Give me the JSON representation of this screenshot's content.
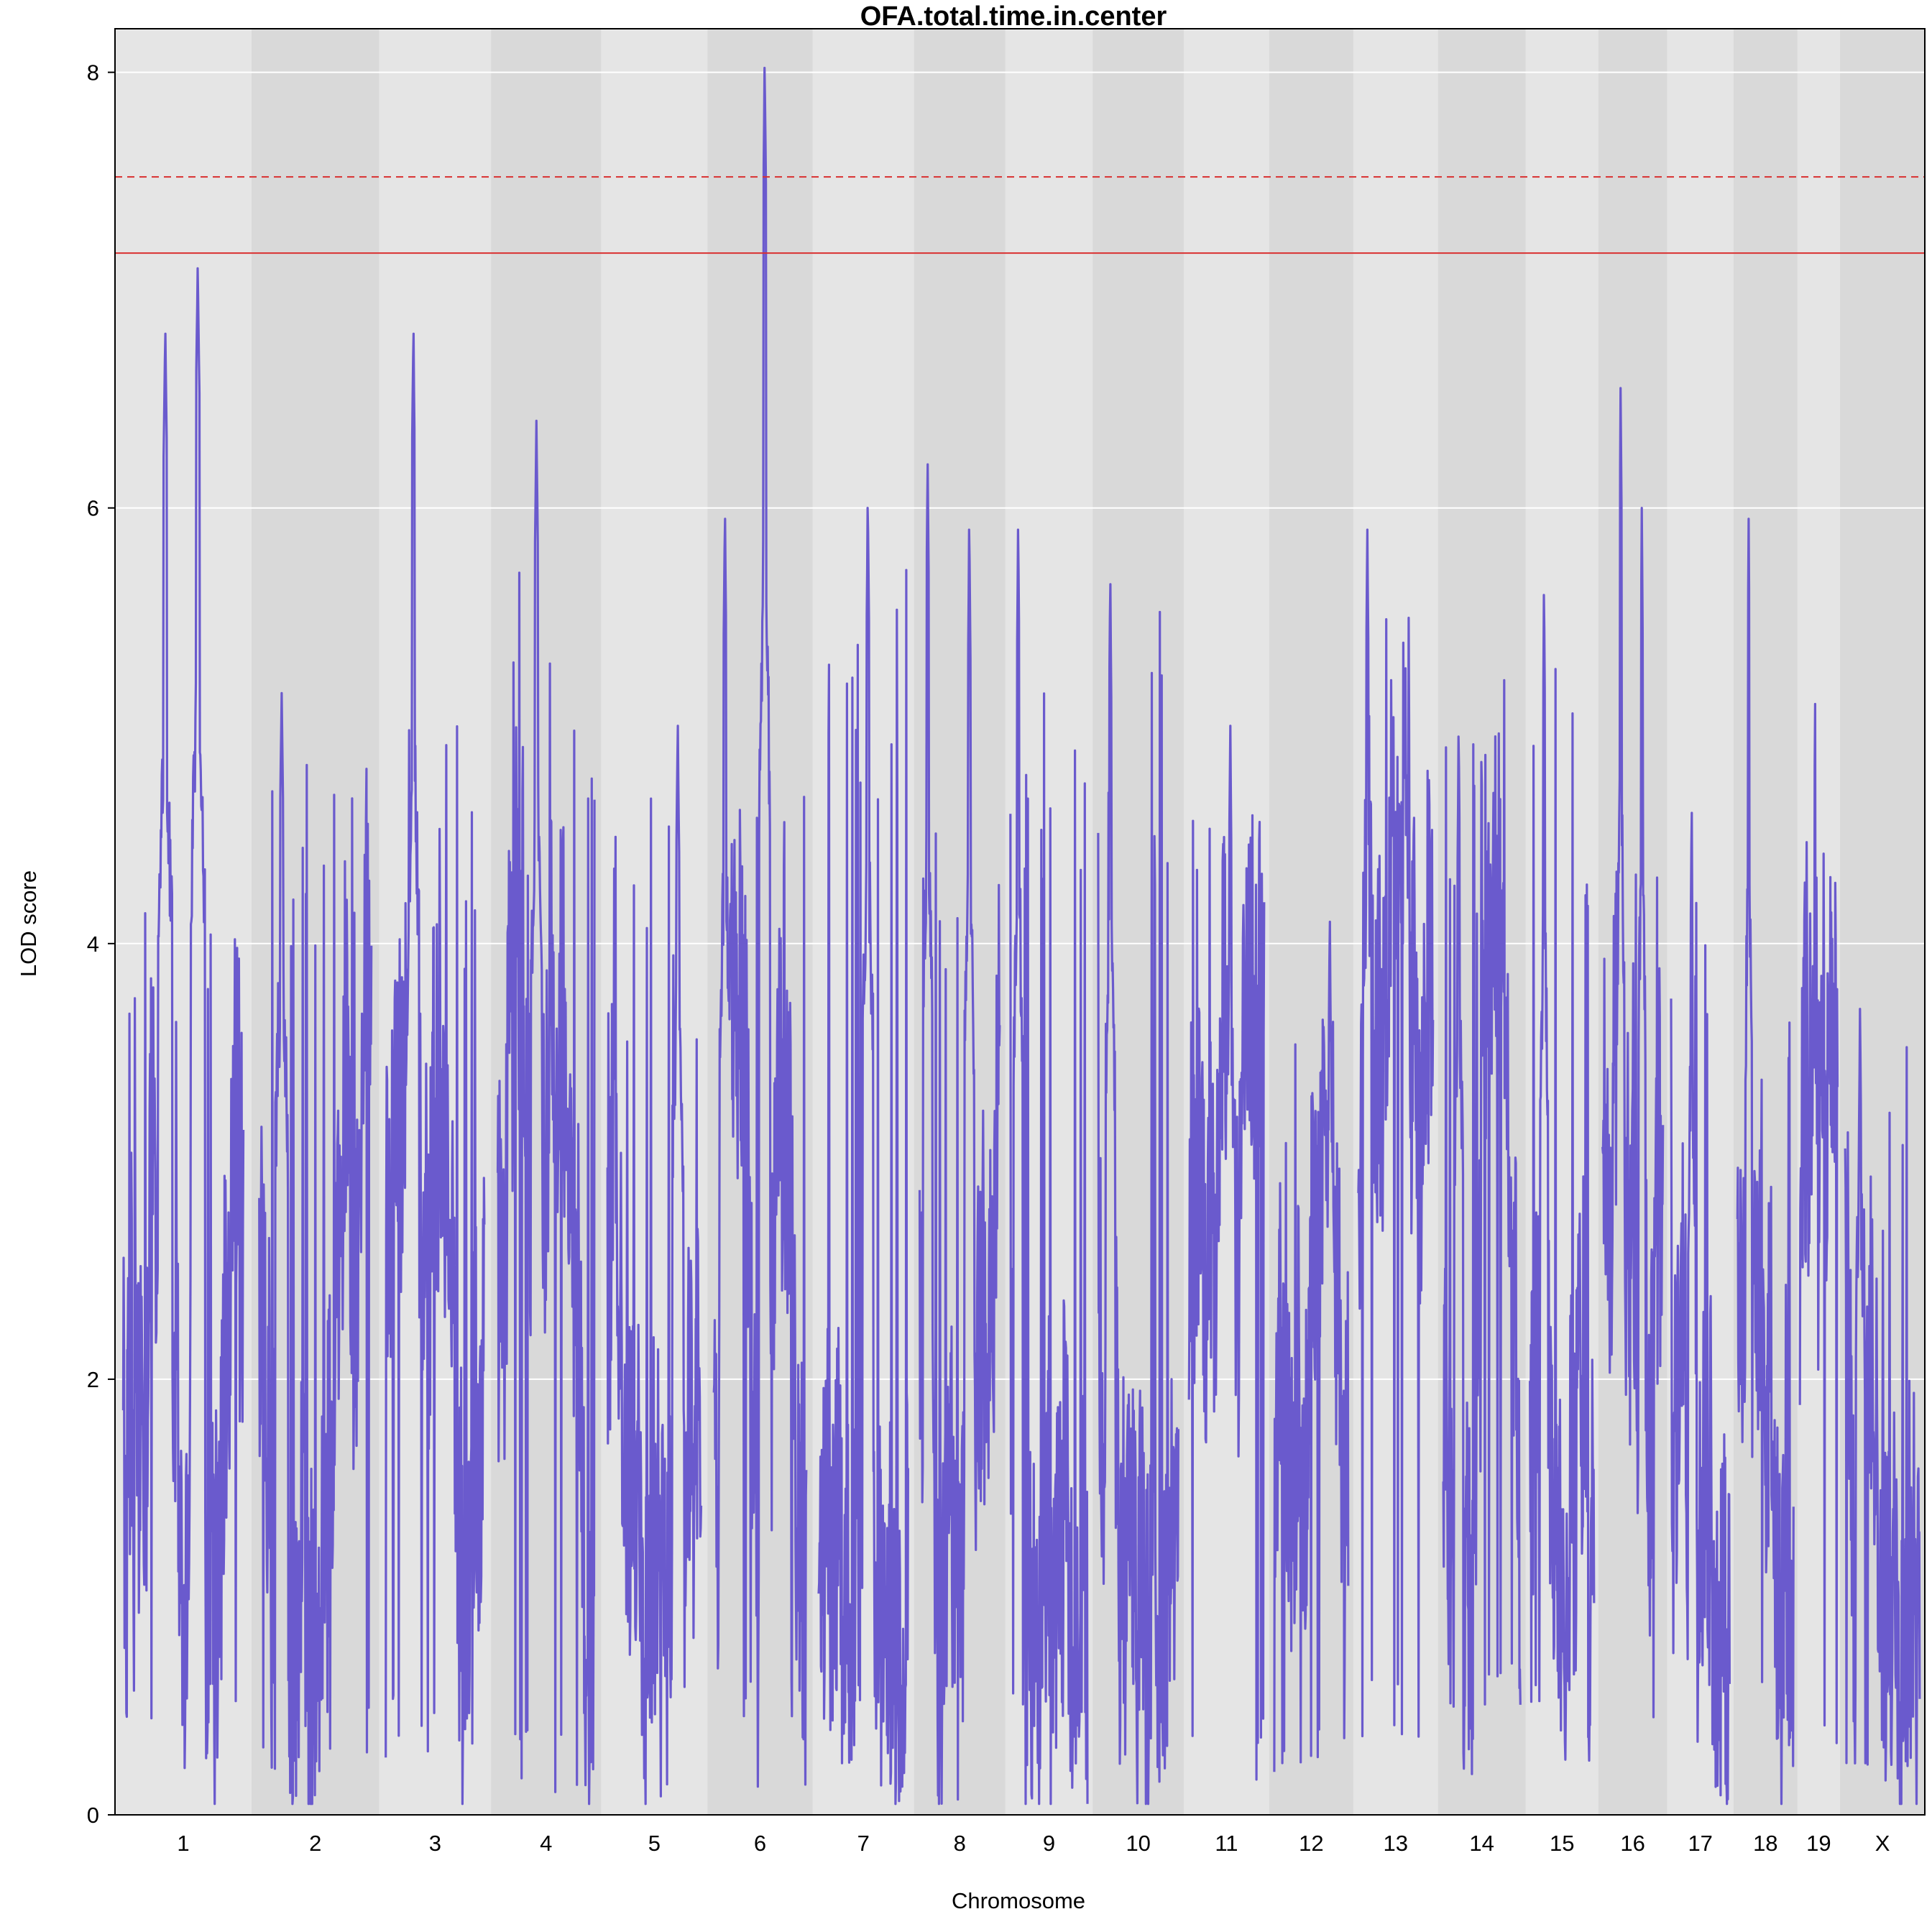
{
  "chart_data": {
    "type": "line",
    "title": "OFA.total.time.in.center",
    "xlabel": "Chromosome",
    "ylabel": "LOD score",
    "ylim": [
      0,
      8.2
    ],
    "yticks": [
      0,
      2,
      4,
      6,
      8
    ],
    "grid": true,
    "colors": {
      "panel_light": "#e5e5e5",
      "panel_dark": "#d9d9d9",
      "grid": "#ffffff",
      "line": "#6a5acd",
      "threshold": "#d93030",
      "frame": "#000000"
    },
    "thresholds": [
      {
        "value": 7.52,
        "style": "dashed"
      },
      {
        "value": 7.17,
        "style": "solid"
      }
    ],
    "chromosomes": [
      {
        "name": "1",
        "length": 195,
        "peaks": [
          {
            "pos": 0.35,
            "lod": 6.8
          },
          {
            "pos": 0.62,
            "lod": 7.1
          }
        ],
        "max": 4.6,
        "min": 0.35
      },
      {
        "name": "2",
        "length": 182,
        "peaks": [
          {
            "pos": 0.2,
            "lod": 5.15
          }
        ],
        "max": 4.85,
        "min": 0.2
      },
      {
        "name": "3",
        "length": 160,
        "peaks": [
          {
            "pos": 0.28,
            "lod": 6.8
          }
        ],
        "max": 5.0,
        "min": 0.25
      },
      {
        "name": "4",
        "length": 157,
        "peaks": [
          {
            "pos": 0.4,
            "lod": 6.4
          }
        ],
        "max": 5.8,
        "min": 0.1
      },
      {
        "name": "5",
        "length": 152,
        "peaks": [
          {
            "pos": 0.75,
            "lod": 5.0
          }
        ],
        "max": 4.7,
        "min": 0.4
      },
      {
        "name": "6",
        "length": 150,
        "peaks": [
          {
            "pos": 0.12,
            "lod": 5.95
          },
          {
            "pos": 0.55,
            "lod": 8.02
          }
        ],
        "max": 4.7,
        "min": 0.45
      },
      {
        "name": "7",
        "length": 145,
        "peaks": [
          {
            "pos": 0.55,
            "lod": 6.0
          }
        ],
        "max": 5.85,
        "min": 0.3
      },
      {
        "name": "8",
        "length": 130,
        "peaks": [
          {
            "pos": 0.1,
            "lod": 6.2
          },
          {
            "pos": 0.62,
            "lod": 5.9
          }
        ],
        "max": 4.9,
        "min": 0.35
      },
      {
        "name": "9",
        "length": 125,
        "peaks": [
          {
            "pos": 0.1,
            "lod": 5.9
          }
        ],
        "max": 5.4,
        "min": 0.3
      },
      {
        "name": "10",
        "length": 130,
        "peaks": [
          {
            "pos": 0.15,
            "lod": 5.65
          }
        ],
        "max": 5.6,
        "min": 0.4
      },
      {
        "name": "11",
        "length": 122,
        "peaks": [
          {
            "pos": 0.55,
            "lod": 5.0
          }
        ],
        "max": 4.6,
        "min": 0.15
      },
      {
        "name": "12",
        "length": 120,
        "peaks": [
          {
            "pos": 0.75,
            "lod": 4.1
          }
        ],
        "max": 3.75,
        "min": 0.15
      },
      {
        "name": "13",
        "length": 121,
        "peaks": [
          {
            "pos": 0.12,
            "lod": 5.9
          }
        ],
        "max": 5.5,
        "min": 0.35
      },
      {
        "name": "14",
        "length": 125,
        "peaks": [
          {
            "pos": 0.2,
            "lod": 4.95
          }
        ],
        "max": 5.25,
        "min": 0.4
      },
      {
        "name": "15",
        "length": 104,
        "peaks": [
          {
            "pos": 0.22,
            "lod": 5.6
          }
        ],
        "max": 5.3,
        "min": 0.4
      },
      {
        "name": "16",
        "length": 98,
        "peaks": [
          {
            "pos": 0.3,
            "lod": 6.55
          },
          {
            "pos": 0.65,
            "lod": 6.0
          }
        ],
        "max": 4.6,
        "min": 0.25
      },
      {
        "name": "17",
        "length": 95,
        "peaks": [
          {
            "pos": 0.35,
            "lod": 4.6
          }
        ],
        "max": 4.35,
        "min": 0.25
      },
      {
        "name": "18",
        "length": 91,
        "peaks": [
          {
            "pos": 0.2,
            "lod": 5.95
          }
        ],
        "max": 3.7,
        "min": 0.4
      },
      {
        "name": "19",
        "length": 61,
        "peaks": [
          {
            "pos": 0.4,
            "lod": 5.1
          }
        ],
        "max": 4.5,
        "min": 0.2
      },
      {
        "name": "X",
        "length": 121,
        "peaks": [
          {
            "pos": 0.2,
            "lod": 3.7
          }
        ],
        "max": 3.55,
        "min": 0.2
      }
    ]
  }
}
